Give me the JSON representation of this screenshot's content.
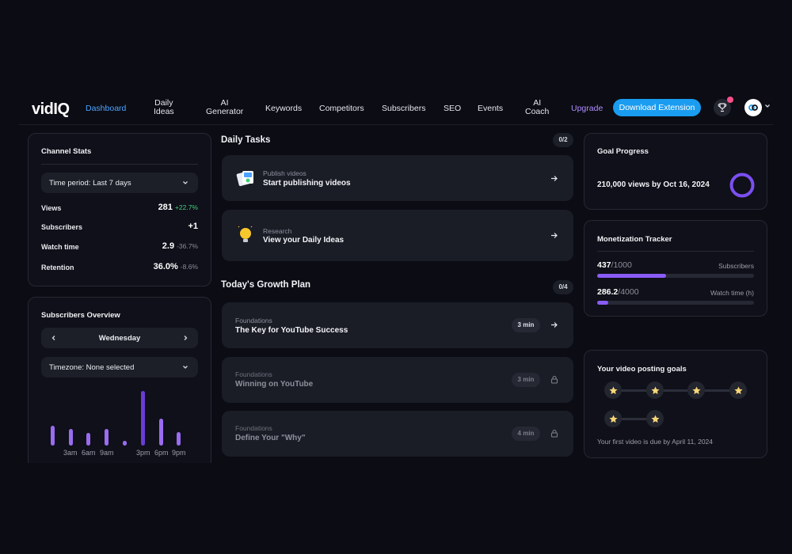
{
  "nav": {
    "logo": "vidIQ",
    "items": [
      "Dashboard",
      "Daily\nIdeas",
      "AI\nGenerator",
      "Keywords",
      "Competitors",
      "Subscribers",
      "SEO",
      "Events",
      "AI\nCoach"
    ],
    "upgrade": "Upgrade",
    "download": "Download Extension"
  },
  "channel_stats": {
    "title": "Channel Stats",
    "time_period": "Time period: Last 7 days",
    "rows": [
      {
        "label": "Views",
        "value": "281",
        "delta": "+22.7%",
        "trend": "pos"
      },
      {
        "label": "Subscribers",
        "value": "+1",
        "delta": "",
        "trend": "none"
      },
      {
        "label": "Watch time",
        "value": "2.9",
        "delta": "-36.7%",
        "trend": "neg"
      },
      {
        "label": "Retention",
        "value": "36.0%",
        "delta": "-8.6%",
        "trend": "neg"
      }
    ]
  },
  "subscribers_overview": {
    "title": "Subscribers Overview",
    "day": "Wednesday",
    "timezone": "Timezone: None selected",
    "hourly_levels": [
      0.36,
      0.31,
      0.23,
      0.31,
      0.09,
      1.0,
      0.5,
      0.25
    ],
    "ticks": [
      "3am",
      "6am",
      "9am",
      "3pm",
      "6pm",
      "9pm"
    ]
  },
  "daily_tasks": {
    "title": "Daily Tasks",
    "count": "0/2",
    "items": [
      {
        "category": "Publish videos",
        "title": "Start publishing videos",
        "icon": "video-files-icon"
      },
      {
        "category": "Research",
        "title": "View your Daily Ideas",
        "icon": "lightbulb-icon"
      }
    ]
  },
  "growth_plan": {
    "title": "Today's Growth Plan",
    "count": "0/4",
    "items": [
      {
        "category": "Foundations",
        "title": "The Key for YouTube Success",
        "time": "3 min",
        "locked": false
      },
      {
        "category": "Foundations",
        "title": "Winning on YouTube",
        "time": "3 min",
        "locked": true
      },
      {
        "category": "Foundations",
        "title": "Define Your \"Why\"",
        "time": "4 min",
        "locked": true
      }
    ]
  },
  "goal_progress": {
    "title": "Goal Progress",
    "goal": "210,000 views by Oct 16, 2024",
    "ring_color": "#7b4ff2"
  },
  "monetization": {
    "title": "Monetization Tracker",
    "subs_value": "437",
    "subs_target": "/1000",
    "subs_label": "Subscribers",
    "subs_progress": 0.437,
    "watch_value": "286.2",
    "watch_target": "/4000",
    "watch_label": "Watch time (h)",
    "watch_progress": 0.0716
  },
  "posting_goals": {
    "title": "Your video posting goals",
    "due": "Your first video is due by April 11, 2024"
  },
  "colors": {
    "accent": "#1a9cf0",
    "active_nav": "#4da3ff",
    "purple": "#8a5cf5",
    "positive": "#3fd07a"
  }
}
